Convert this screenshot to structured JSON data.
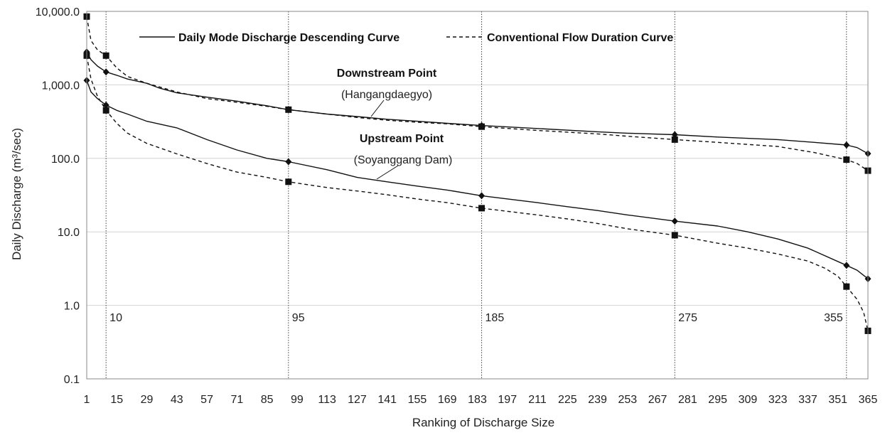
{
  "chart_data": {
    "type": "line",
    "title": "",
    "xlabel": "Ranking of Discharge Size",
    "ylabel": "Daily Discharge (m³/sec)",
    "x_scale": "linear",
    "y_scale": "log",
    "xlim": [
      1,
      365
    ],
    "ylim": [
      0.1,
      10000
    ],
    "x_ticks": [
      1,
      15,
      29,
      43,
      57,
      71,
      85,
      99,
      113,
      127,
      141,
      155,
      169,
      183,
      197,
      211,
      225,
      239,
      253,
      267,
      281,
      295,
      309,
      323,
      337,
      351,
      365
    ],
    "y_ticks": [
      0.1,
      1,
      10,
      100,
      1000,
      10000
    ],
    "y_tick_labels": [
      "0.1",
      "1.0",
      "10.0",
      "100.0",
      "1,000.0",
      "10,000.0"
    ],
    "grid": "horizontal",
    "legend_position": "top",
    "legend": [
      {
        "label": "Daily Mode Discharge Descending Curve",
        "style": "solid"
      },
      {
        "label": "Conventional Flow Duration Curve",
        "style": "dashed"
      }
    ],
    "reference_lines": [
      {
        "x": 10,
        "label": "10"
      },
      {
        "x": 95,
        "label": "95"
      },
      {
        "x": 185,
        "label": "185"
      },
      {
        "x": 275,
        "label": "275"
      },
      {
        "x": 355,
        "label": "355"
      }
    ],
    "annotations": [
      {
        "title": "Downstream Point",
        "subtitle": "(Hangangdaegyo)"
      },
      {
        "title": "Upstream Point",
        "subtitle": "(Soyanggang Dam)"
      }
    ],
    "series": [
      {
        "group": "Downstream Point",
        "legend": "Daily Mode Discharge Descending Curve",
        "style": "solid",
        "marker": "diamond",
        "x": [
          1,
          3,
          6,
          10,
          15,
          20,
          29,
          35,
          43,
          57,
          71,
          85,
          95,
          113,
          127,
          141,
          155,
          169,
          185,
          211,
          239,
          253,
          275,
          295,
          323,
          340,
          355,
          360,
          365
        ],
        "y": [
          2800,
          2200,
          1800,
          1500,
          1350,
          1200,
          1050,
          900,
          780,
          680,
          600,
          520,
          460,
          400,
          370,
          340,
          320,
          300,
          280,
          255,
          230,
          220,
          210,
          195,
          180,
          165,
          152,
          140,
          116
        ],
        "markers_at": [
          1,
          10,
          95,
          185,
          275,
          355,
          365
        ]
      },
      {
        "group": "Downstream Point",
        "legend": "Conventional Flow Duration Curve",
        "style": "dashed",
        "marker": "square",
        "x": [
          1,
          3,
          6,
          10,
          15,
          20,
          29,
          43,
          57,
          71,
          85,
          95,
          113,
          127,
          141,
          155,
          169,
          185,
          211,
          239,
          253,
          275,
          295,
          323,
          340,
          355,
          360,
          365
        ],
        "y": [
          8500,
          4000,
          3000,
          2500,
          1700,
          1300,
          1050,
          800,
          650,
          580,
          510,
          460,
          400,
          360,
          330,
          310,
          295,
          270,
          240,
          215,
          200,
          180,
          165,
          145,
          120,
          96,
          85,
          68
        ],
        "markers_at": [
          1,
          10,
          95,
          185,
          275,
          355,
          365
        ]
      },
      {
        "group": "Upstream Point",
        "legend": "Daily Mode Discharge Descending Curve",
        "style": "solid",
        "marker": "diamond",
        "x": [
          1,
          3,
          6,
          10,
          15,
          20,
          29,
          43,
          57,
          71,
          85,
          95,
          113,
          127,
          141,
          155,
          169,
          185,
          211,
          225,
          239,
          253,
          275,
          295,
          309,
          323,
          337,
          355,
          360,
          365
        ],
        "y": [
          1150,
          800,
          650,
          530,
          450,
          400,
          320,
          260,
          180,
          130,
          100,
          90,
          70,
          55,
          48,
          42,
          37,
          31,
          25,
          22,
          19.5,
          17,
          14,
          12,
          10,
          8,
          6,
          3.5,
          3,
          2.3
        ],
        "markers_at": [
          1,
          10,
          95,
          185,
          275,
          355,
          365
        ]
      },
      {
        "group": "Upstream Point",
        "legend": "Conventional Flow Duration Curve",
        "style": "dashed",
        "marker": "square",
        "x": [
          1,
          3,
          6,
          10,
          15,
          20,
          29,
          43,
          57,
          71,
          85,
          95,
          113,
          127,
          141,
          155,
          169,
          185,
          211,
          225,
          239,
          253,
          275,
          295,
          309,
          323,
          337,
          345,
          351,
          355,
          360,
          363,
          365
        ],
        "y": [
          2500,
          1200,
          700,
          450,
          300,
          220,
          160,
          115,
          85,
          65,
          55,
          48,
          40,
          36,
          32,
          28,
          25,
          21,
          17,
          15,
          13,
          11,
          9,
          7,
          6,
          5,
          4,
          3.2,
          2.5,
          1.8,
          1.2,
          0.8,
          0.45
        ],
        "markers_at": [
          1,
          10,
          95,
          185,
          275,
          355,
          365
        ]
      }
    ]
  }
}
